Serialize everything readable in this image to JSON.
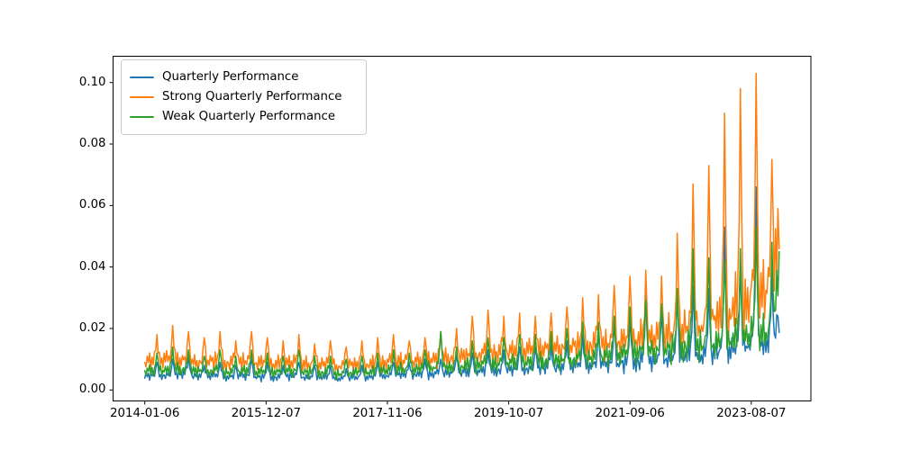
{
  "figure": {
    "background": "#ffffff",
    "frame_color": "#000000"
  },
  "chart_data": {
    "type": "line",
    "title": "",
    "xlabel": "",
    "ylabel": "",
    "grid": false,
    "legend_position": "upper left",
    "x_axis": {
      "tick_labels": [
        "2014-01-06",
        "2015-12-07",
        "2017-11-06",
        "2019-10-07",
        "2021-09-06",
        "2023-08-07"
      ],
      "tick_weeks": [
        0,
        100,
        200,
        300,
        400,
        500
      ],
      "unit": "weekly dates"
    },
    "y_axis": {
      "tick_labels": [
        "0.00",
        "0.02",
        "0.04",
        "0.06",
        "0.08",
        "0.10"
      ],
      "tick_values": [
        0.0,
        0.02,
        0.04,
        0.06,
        0.08,
        0.1
      ]
    },
    "ylim": [
      -0.0034,
      0.109
    ],
    "xlim_weeks": [
      -26,
      549
    ],
    "series": [
      {
        "name": "Quarterly Performance",
        "color": "#1f77b4",
        "noise_offset": 7,
        "quarter_bases": [
          0.0045,
          0.0045,
          0.005,
          0.0045,
          0.0045,
          0.004,
          0.0045,
          0.004,
          0.004,
          0.0045,
          0.004,
          0.004,
          0.0035,
          0.004,
          0.004,
          0.0045,
          0.005,
          0.005,
          0.005,
          0.0055,
          0.0055,
          0.006,
          0.006,
          0.0065,
          0.0065,
          0.007,
          0.007,
          0.0075,
          0.0075,
          0.008,
          0.008,
          0.0085,
          0.009,
          0.0095,
          0.01,
          0.01,
          0.011,
          0.012,
          0.013,
          0.014,
          0.024
        ],
        "quarter_peaks": [
          0.009,
          0.01,
          0.011,
          0.008,
          0.009,
          0.008,
          0.01,
          0.009,
          0.008,
          0.009,
          0.008,
          0.008,
          0.007,
          0.008,
          0.009,
          0.009,
          0.009,
          0.01,
          0.01,
          0.011,
          0.012,
          0.013,
          0.013,
          0.014,
          0.014,
          0.015,
          0.016,
          0.018,
          0.018,
          0.021,
          0.024,
          0.031,
          0.025,
          0.03,
          0.034,
          0.033,
          0.053,
          0.04,
          0.066,
          0.038,
          0
        ]
      },
      {
        "name": "Strong Quarterly Performance",
        "color": "#ff7f0e",
        "noise_offset": 0,
        "quarter_bases": [
          0.009,
          0.0095,
          0.009,
          0.0085,
          0.009,
          0.0085,
          0.009,
          0.0085,
          0.008,
          0.0085,
          0.008,
          0.008,
          0.0075,
          0.008,
          0.008,
          0.0085,
          0.009,
          0.009,
          0.0095,
          0.01,
          0.0105,
          0.011,
          0.0115,
          0.012,
          0.0125,
          0.0125,
          0.013,
          0.0135,
          0.014,
          0.0145,
          0.015,
          0.0155,
          0.016,
          0.017,
          0.018,
          0.019,
          0.021,
          0.023,
          0.026,
          0.03,
          0.05
        ],
        "quarter_peaks": [
          0.018,
          0.021,
          0.019,
          0.017,
          0.019,
          0.016,
          0.019,
          0.017,
          0.016,
          0.018,
          0.015,
          0.016,
          0.014,
          0.016,
          0.017,
          0.018,
          0.016,
          0.017,
          0.019,
          0.02,
          0.024,
          0.026,
          0.024,
          0.025,
          0.024,
          0.025,
          0.027,
          0.03,
          0.031,
          0.034,
          0.037,
          0.039,
          0.037,
          0.051,
          0.067,
          0.073,
          0.09,
          0.098,
          0.103,
          0.075,
          0
        ]
      },
      {
        "name": "Weak Quarterly Performance",
        "color": "#2ca02c",
        "noise_offset": 14,
        "quarter_bases": [
          0.006,
          0.006,
          0.0065,
          0.006,
          0.006,
          0.0055,
          0.006,
          0.0055,
          0.0055,
          0.006,
          0.0055,
          0.0055,
          0.005,
          0.0055,
          0.0055,
          0.006,
          0.0065,
          0.0065,
          0.007,
          0.007,
          0.0075,
          0.008,
          0.008,
          0.0085,
          0.0085,
          0.009,
          0.009,
          0.0095,
          0.01,
          0.0105,
          0.011,
          0.0115,
          0.012,
          0.0125,
          0.013,
          0.0135,
          0.014,
          0.015,
          0.016,
          0.017,
          0.036
        ],
        "quarter_peaks": [
          0.012,
          0.014,
          0.013,
          0.011,
          0.013,
          0.011,
          0.013,
          0.012,
          0.011,
          0.013,
          0.011,
          0.011,
          0.01,
          0.011,
          0.012,
          0.013,
          0.012,
          0.013,
          0.019,
          0.014,
          0.016,
          0.017,
          0.017,
          0.018,
          0.018,
          0.019,
          0.02,
          0.022,
          0.022,
          0.024,
          0.027,
          0.029,
          0.028,
          0.033,
          0.046,
          0.043,
          0.042,
          0.046,
          0.053,
          0.048,
          0
        ]
      }
    ],
    "generation": {
      "weeks": 524,
      "weeks_per_quarter": 13,
      "start_date": "2014-01-06",
      "noise": [
        1.0,
        0.78,
        1.22,
        0.9,
        1.32,
        0.72,
        1.08,
        0.85,
        1.25,
        0.95,
        1.15,
        0.66,
        1.28,
        0.88,
        1.05,
        0.75,
        1.18,
        0.92,
        1.35,
        0.8,
        1.1,
        0.7,
        1.02
      ],
      "spike_shape": [
        0,
        0.04,
        0,
        0.08,
        0.03,
        0,
        0.12,
        0.06,
        0.18,
        0.45,
        1,
        0.5,
        0.12
      ]
    }
  }
}
